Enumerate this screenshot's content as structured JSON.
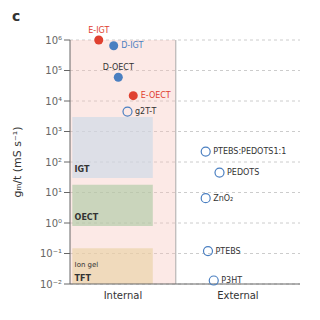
{
  "chart_data": {
    "type": "scatter",
    "title": "c",
    "ylabel": "gₘ/t (mS s⁻¹)",
    "log": "y",
    "xlim": [
      0,
      2
    ],
    "ylim": [
      0.01,
      1000000
    ],
    "yticks": [
      {
        "value": 0.01,
        "label": "10⁻²"
      },
      {
        "value": 0.1,
        "label": "10⁻¹"
      },
      {
        "value": 1,
        "label": "10⁰"
      },
      {
        "value": 10,
        "label": "10¹"
      },
      {
        "value": 100,
        "label": "10²"
      },
      {
        "value": 1000,
        "label": "10³"
      },
      {
        "value": 10000,
        "label": "10⁴"
      },
      {
        "value": 100000,
        "label": "10⁵"
      },
      {
        "value": 1000000,
        "label": "10⁶"
      }
    ],
    "grid": true,
    "tick_labels": "y",
    "regions": [
      {
        "label": "Internal",
        "xlim": [
          0,
          0.92
        ],
        "color": "#f5c0b8"
      },
      {
        "label": "External",
        "xlim": [
          0.92,
          2
        ]
      }
    ],
    "annotations": [
      "IGT",
      "OECT",
      "Ion gel",
      "TFT"
    ],
    "points": [
      {
        "label": "E-IGT",
        "x": 0.25,
        "y": 1000000,
        "color": "#e04030",
        "marker": "filled",
        "label_color": "#e04030"
      },
      {
        "label": "D-IGT",
        "x": 0.38,
        "y": 650000,
        "color": "#4a7fc1",
        "marker": "filled",
        "label_color": "#4a7fc1"
      },
      {
        "label": "D-OECT",
        "x": 0.42,
        "y": 60000,
        "color": "#4a7fc1",
        "marker": "filled",
        "label_color": "#333333"
      },
      {
        "label": "E-OECT",
        "x": 0.55,
        "y": 15000,
        "color": "#e04030",
        "marker": "filled",
        "label_color": "#e04030"
      },
      {
        "label": "g2T-T",
        "x": 0.5,
        "y": 4500,
        "color": "#4a7fc1",
        "marker": "open",
        "label_color": "#333333"
      },
      {
        "label": "PTEBS:PEDOTS1:1",
        "x": 1.18,
        "y": 220,
        "color": "#4a7fc1",
        "marker": "open",
        "label_color": "#333333"
      },
      {
        "label": "PEDOTS",
        "x": 1.3,
        "y": 45,
        "color": "#4a7fc1",
        "marker": "open",
        "label_color": "#333333"
      },
      {
        "label": "ZnO₂",
        "x": 1.18,
        "y": 6.5,
        "color": "#4a7fc1",
        "marker": "open",
        "label_color": "#333333"
      },
      {
        "label": "PTEBS",
        "x": 1.2,
        "y": 0.12,
        "color": "#4a7fc1",
        "marker": "open",
        "label_color": "#333333"
      },
      {
        "label": "P3HT",
        "x": 1.25,
        "y": 0.013,
        "color": "#4a7fc1",
        "marker": "open",
        "label_color": "#333333"
      }
    ]
  }
}
